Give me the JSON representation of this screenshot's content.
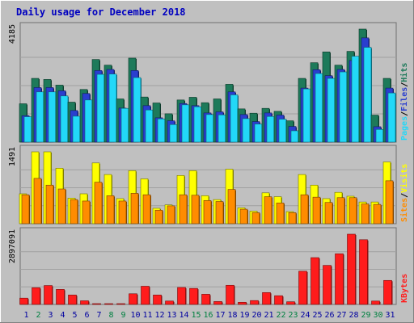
{
  "chart_data": {
    "type": "bar",
    "title": "Daily usage for December 2018",
    "days": [
      "1",
      "2",
      "3",
      "4",
      "5",
      "6",
      "7",
      "8",
      "9",
      "10",
      "11",
      "12",
      "13",
      "14",
      "15",
      "16",
      "17",
      "18",
      "19",
      "20",
      "21",
      "22",
      "23",
      "24",
      "25",
      "26",
      "27",
      "28",
      "29",
      "30",
      "31"
    ],
    "weekend_days": [
      "2",
      "8",
      "9",
      "15",
      "16",
      "22",
      "23",
      "29",
      "30"
    ],
    "panels": [
      {
        "name": "hits-files-pages",
        "max_label": "4185",
        "ymax": 4185,
        "side_labels": [
          "Pages",
          "/",
          "Files",
          "/",
          "Hits"
        ],
        "series": [
          {
            "name": "Hits",
            "color": "#1d7a5a",
            "values": [
              1420,
              2360,
              2320,
              2110,
              1480,
              1950,
              3060,
              2850,
              1600,
              3110,
              1670,
              1450,
              1050,
              1560,
              1660,
              1460,
              1600,
              2140,
              1230,
              1070,
              1250,
              1140,
              790,
              2360,
              2940,
              3340,
              2850,
              3360,
              4185,
              1000,
              2360
            ]
          },
          {
            "name": "Files",
            "color": "#2a3ecf",
            "values": [
              980,
              2020,
              2020,
              1900,
              1170,
              1800,
              2650,
              2690,
              1260,
              2650,
              1350,
              900,
              790,
              1430,
              1350,
              1080,
              1120,
              1860,
              1020,
              760,
              1080,
              1000,
              580,
              2000,
              2680,
              2460,
              2690,
              3020,
              3860,
              570,
              2000
            ]
          },
          {
            "name": "Pages",
            "color": "#22d8f8",
            "values": [
              940,
              1860,
              1860,
              1710,
              960,
              1560,
              2510,
              2520,
              1250,
              2390,
              1190,
              860,
              650,
              1380,
              1310,
              1020,
              1010,
              1750,
              870,
              670,
              950,
              850,
              420,
              1970,
              2540,
              2360,
              2600,
              3180,
              3510,
              470,
              1820
            ]
          }
        ]
      },
      {
        "name": "visits-sites",
        "max_label": "1491",
        "ymax": 1491,
        "side_labels": [
          "Sites",
          "/",
          "Visits"
        ],
        "series": [
          {
            "name": "Visits",
            "color": "#ffff00",
            "values": [
              620,
              1491,
              1491,
              1150,
              530,
              620,
              1260,
              1020,
              520,
              1100,
              930,
              320,
              390,
              1000,
              1100,
              580,
              500,
              1130,
              330,
              260,
              640,
              560,
              250,
              1020,
              800,
              520,
              650,
              570,
              450,
              450,
              1280
            ]
          },
          {
            "name": "Sites",
            "color": "#ff8c00",
            "values": [
              600,
              940,
              800,
              720,
              500,
              470,
              860,
              580,
              470,
              630,
              600,
              280,
              370,
              600,
              590,
              480,
              460,
              710,
              300,
              230,
              560,
              430,
              230,
              600,
              550,
              440,
              540,
              540,
              410,
              400,
              890
            ]
          }
        ]
      },
      {
        "name": "kbytes",
        "max_label": "2897091",
        "ymax": 2897091,
        "side_labels": [
          "KBytes"
        ],
        "series": [
          {
            "name": "KBytes",
            "color": "#ff1c1c",
            "values": [
              260000,
              690000,
              780000,
              620000,
              390000,
              150000,
              15000,
              15000,
              15000,
              440000,
              750000,
              390000,
              140000,
              700000,
              660000,
              420000,
              120000,
              790000,
              90000,
              160000,
              490000,
              360000,
              110000,
              1370000,
              1930000,
              1610000,
              2090000,
              2897091,
              2670000,
              140000,
              990000
            ]
          }
        ]
      }
    ]
  },
  "colors": {
    "background": "#c0c0c0",
    "border_light": "#ffffff",
    "border_dark": "#808080",
    "title_text": "#0000c0",
    "weekday_label": "#0000a0",
    "weekend_label": "#008040",
    "grid": "#a0a0a0"
  }
}
